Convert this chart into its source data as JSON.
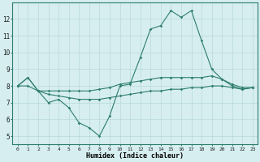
{
  "xlabel": "Humidex (Indice chaleur)",
  "x": [
    0,
    1,
    2,
    3,
    4,
    5,
    6,
    7,
    8,
    9,
    10,
    11,
    12,
    13,
    14,
    15,
    16,
    17,
    18,
    19,
    20,
    21,
    22,
    23
  ],
  "line1": [
    8.0,
    8.5,
    7.7,
    7.0,
    7.2,
    6.7,
    5.8,
    5.5,
    5.0,
    6.2,
    8.0,
    8.1,
    9.7,
    11.4,
    11.6,
    12.5,
    12.1,
    12.5,
    10.7,
    9.0,
    8.4,
    8.0,
    7.8,
    7.9
  ],
  "line2": [
    8.0,
    8.5,
    7.7,
    7.7,
    7.7,
    7.7,
    7.7,
    7.7,
    7.8,
    7.9,
    8.1,
    8.2,
    8.3,
    8.4,
    8.5,
    8.5,
    8.5,
    8.5,
    8.5,
    8.6,
    8.4,
    8.1,
    7.9,
    7.9
  ],
  "line3": [
    8.0,
    8.0,
    7.7,
    7.5,
    7.4,
    7.3,
    7.2,
    7.2,
    7.2,
    7.3,
    7.4,
    7.5,
    7.6,
    7.7,
    7.7,
    7.8,
    7.8,
    7.9,
    7.9,
    8.0,
    8.0,
    7.9,
    7.8,
    7.9
  ],
  "color": "#2e7d6e",
  "bg_color": "#d6eef0",
  "grid_color": "#b8d8db",
  "ylim": [
    4.5,
    13.0
  ],
  "yticks": [
    5,
    6,
    7,
    8,
    9,
    10,
    11,
    12
  ],
  "xlim": [
    -0.5,
    23.5
  ],
  "xtick_fontsize": 4.5,
  "ytick_fontsize": 5.5,
  "xlabel_fontsize": 6.0
}
